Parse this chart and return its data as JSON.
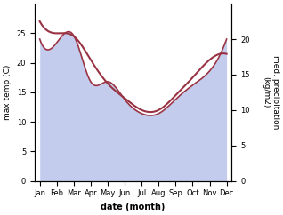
{
  "months": [
    "Jan",
    "Feb",
    "Mar",
    "Apr",
    "May",
    "Jun",
    "Jul",
    "Aug",
    "Sep",
    "Oct",
    "Nov",
    "Dec"
  ],
  "temp_max": [
    27.0,
    25.0,
    24.5,
    20.5,
    16.5,
    14.0,
    12.0,
    12.0,
    14.5,
    17.5,
    20.5,
    21.5
  ],
  "precip": [
    20.0,
    19.5,
    20.5,
    14.0,
    14.0,
    11.5,
    9.5,
    9.5,
    11.5,
    13.5,
    15.5,
    20.0
  ],
  "temp_color": "#993344",
  "precip_fill_color": "#b0bce8",
  "precip_fill_alpha": 0.75,
  "ylabel_left": "max temp (C)",
  "ylabel_right": "med. precipitation\n(kg/m2)",
  "xlabel": "date (month)",
  "ylim_left": [
    0,
    30
  ],
  "ylim_right": [
    0,
    25
  ],
  "yticks_left": [
    0,
    5,
    10,
    15,
    20,
    25
  ],
  "yticks_right": [
    0,
    5,
    10,
    15,
    20
  ],
  "background_color": "#ffffff",
  "fig_width": 3.18,
  "fig_height": 2.42,
  "dpi": 100
}
